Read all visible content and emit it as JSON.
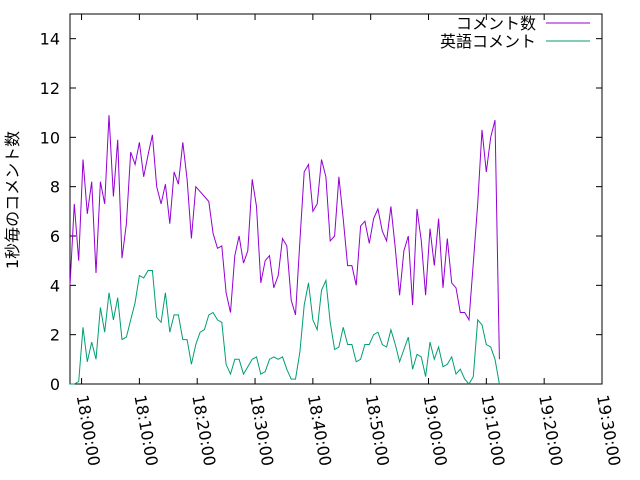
{
  "chart_data": {
    "type": "line",
    "title": "",
    "xlabel": "",
    "ylabel": "1秒毎のコメント数",
    "ylim": [
      0,
      15
    ],
    "yticks": [
      0,
      2,
      4,
      6,
      8,
      10,
      12,
      14
    ],
    "xticks": [
      "18:00:00",
      "18:10:00",
      "18:20:00",
      "18:30:00",
      "18:40:00",
      "18:50:00",
      "19:00:00",
      "19:10:00",
      "19:20:00",
      "19:30:00"
    ],
    "xlim": [
      "17:58:00",
      "19:30:00"
    ],
    "grid": false,
    "legend": "top-right",
    "x_step_seconds": 45,
    "x_start": "17:58:00",
    "series": [
      {
        "name": "コメント数",
        "color": "#9400d3",
        "values": [
          4.0,
          7.3,
          5.0,
          9.1,
          6.9,
          8.2,
          4.5,
          8.2,
          7.3,
          10.9,
          7.6,
          9.9,
          5.1,
          6.5,
          9.4,
          8.9,
          9.8,
          8.4,
          9.3,
          10.1,
          8.0,
          7.3,
          8.1,
          6.5,
          8.6,
          8.1,
          9.8,
          8.3,
          5.9,
          8.0,
          7.8,
          7.6,
          7.4,
          6.1,
          5.5,
          5.6,
          3.7,
          2.9,
          5.2,
          6.0,
          4.9,
          5.4,
          8.3,
          7.2,
          4.1,
          5.0,
          5.2,
          3.9,
          4.4,
          5.9,
          5.6,
          3.4,
          2.8,
          5.8,
          8.6,
          8.9,
          7.0,
          7.3,
          9.1,
          8.4,
          5.8,
          6.0,
          8.4,
          6.7,
          4.8,
          4.8,
          4.0,
          6.4,
          6.6,
          5.7,
          6.7,
          7.1,
          6.2,
          5.8,
          7.2,
          5.5,
          3.6,
          5.4,
          6.0,
          3.2,
          7.1,
          5.8,
          3.6,
          6.3,
          4.8,
          6.7,
          3.9,
          5.9,
          4.1,
          3.9,
          2.9,
          2.9,
          2.6,
          4.9,
          7.3,
          10.3,
          8.6,
          10.0,
          10.7,
          1.0
        ]
      },
      {
        "name": "英語コメント",
        "color": "#009e73",
        "values": [
          0.0,
          0.0,
          0.1,
          2.3,
          0.9,
          1.7,
          1.0,
          3.1,
          2.1,
          3.7,
          2.6,
          3.5,
          1.8,
          1.9,
          2.6,
          3.3,
          4.4,
          4.3,
          4.6,
          4.6,
          2.7,
          2.5,
          3.7,
          2.1,
          2.8,
          2.8,
          1.8,
          1.8,
          0.8,
          1.6,
          2.1,
          2.2,
          2.8,
          2.9,
          2.6,
          2.5,
          0.8,
          0.4,
          1.0,
          1.0,
          0.4,
          0.7,
          1.0,
          1.1,
          0.4,
          0.5,
          1.0,
          1.1,
          1.0,
          1.1,
          0.6,
          0.2,
          0.2,
          1.3,
          3.2,
          4.1,
          2.6,
          2.2,
          3.8,
          4.2,
          2.5,
          1.4,
          1.5,
          2.3,
          1.6,
          1.6,
          0.9,
          1.0,
          1.6,
          1.6,
          2.0,
          2.1,
          1.6,
          1.5,
          2.2,
          1.6,
          0.9,
          1.4,
          1.9,
          0.6,
          1.2,
          1.1,
          0.3,
          1.7,
          1.0,
          1.5,
          0.7,
          0.8,
          1.1,
          0.4,
          0.6,
          0.2,
          0.0,
          0.3,
          2.6,
          2.4,
          1.6,
          1.5,
          1.0,
          0.0
        ]
      }
    ]
  }
}
